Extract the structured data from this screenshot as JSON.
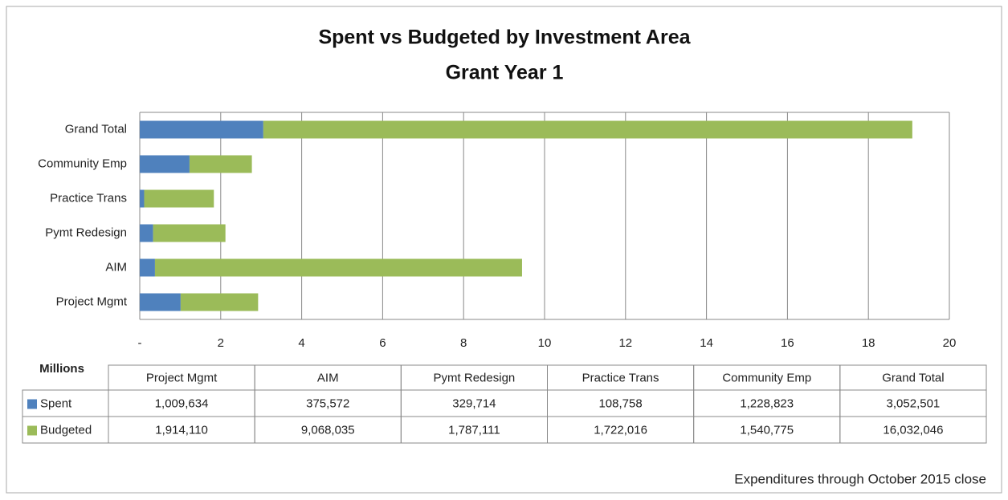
{
  "chart_data": {
    "type": "stacked_bar_horizontal",
    "title": "Spent vs Budgeted by Investment Area",
    "subtitle": "Grant Year 1",
    "axis_label": "Millions",
    "categories": [
      "Project Mgmt",
      "AIM",
      "Pymt Redesign",
      "Practice Trans",
      "Community Emp",
      "Grand Total"
    ],
    "series": [
      {
        "name": "Spent",
        "color": "#4f81bd",
        "values": [
          1.009634,
          0.375572,
          0.329714,
          0.108758,
          1.228823,
          3.052501
        ],
        "value_labels": [
          "1,009,634",
          "375,572",
          "329,714",
          "108,758",
          "1,228,823",
          "3,052,501"
        ]
      },
      {
        "name": "Budgeted",
        "color": "#9bbb59",
        "values": [
          1.91411,
          9.068035,
          1.787111,
          1.722016,
          1.540775,
          16.032046
        ],
        "value_labels": [
          "1,914,110",
          "9,068,035",
          "1,787,111",
          "1,722,016",
          "1,540,775",
          "16,032,046"
        ]
      }
    ],
    "xlim": [
      0,
      20
    ],
    "xticks": [
      {
        "value": 0,
        "label": "-"
      },
      2,
      4,
      6,
      8,
      10,
      12,
      14,
      16,
      18,
      20
    ],
    "grid": true,
    "note": "Expenditures through October 2015 close"
  }
}
